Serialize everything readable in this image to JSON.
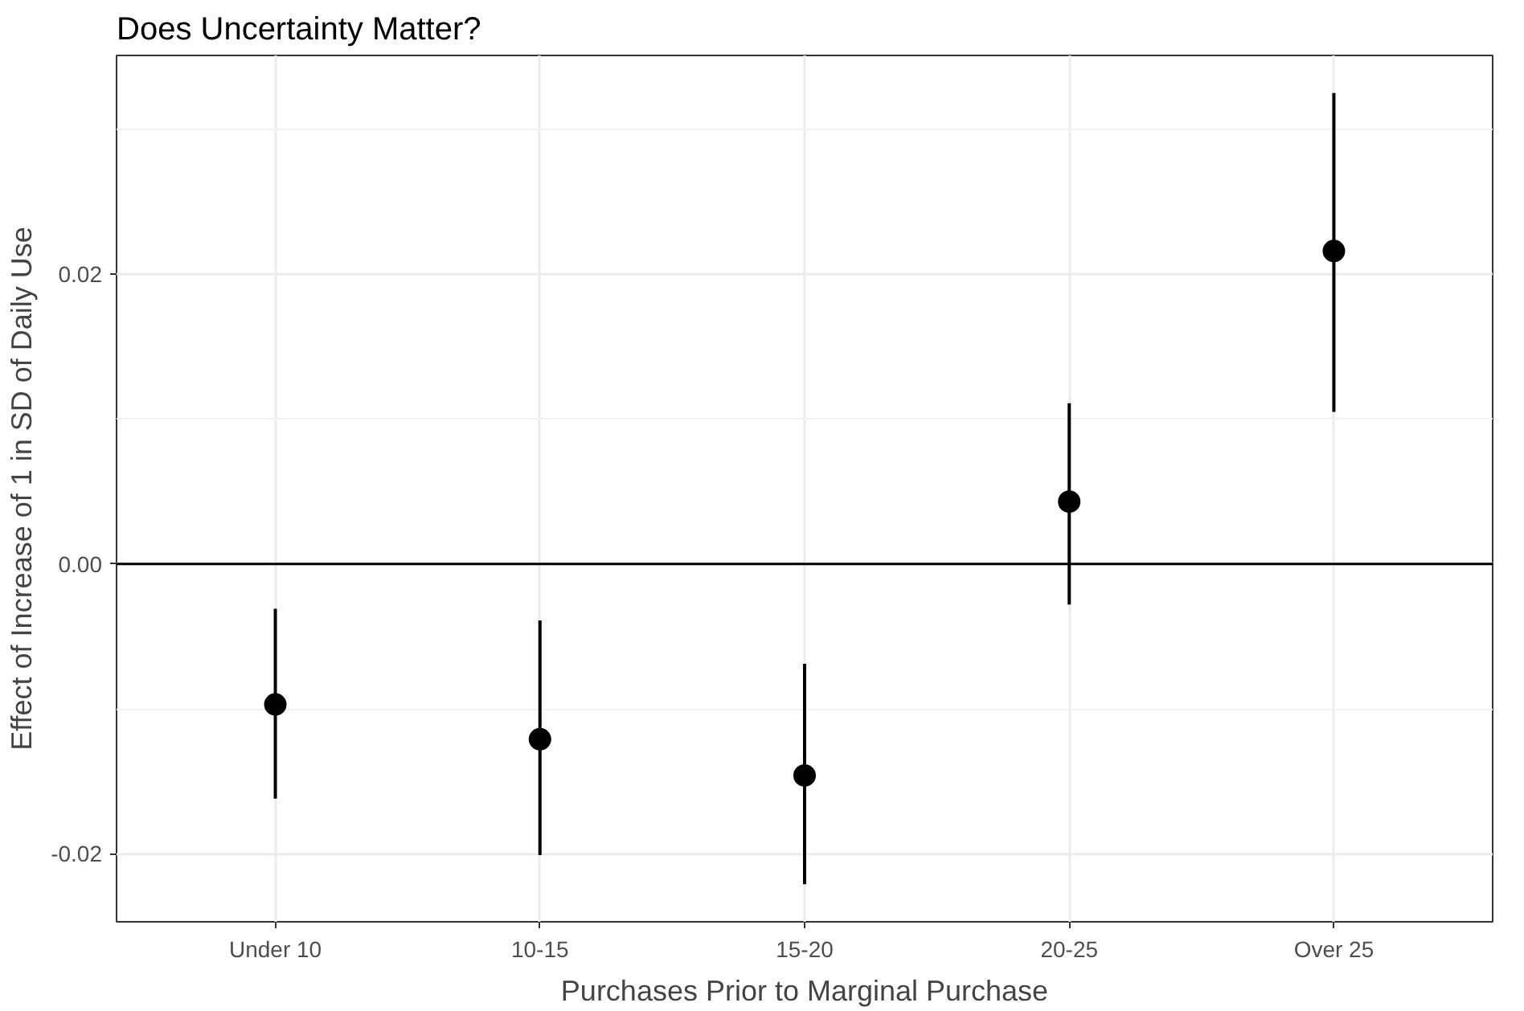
{
  "chart_data": {
    "type": "scatter",
    "title": "Does Uncertainty Matter?",
    "xlabel": "Purchases Prior to Marginal Purchase",
    "ylabel": "Effect of Increase of 1 in SD of Daily Use",
    "categories": [
      "Under 10",
      "10-15",
      "15-20",
      "20-25",
      "Over 25"
    ],
    "values": [
      -0.0097,
      -0.0121,
      -0.0146,
      0.0043,
      0.0216
    ],
    "errors": [
      [
        -0.0162,
        -0.0031
      ],
      [
        -0.0201,
        -0.0039
      ],
      [
        -0.0221,
        -0.0069
      ],
      [
        -0.0028,
        0.0111
      ],
      [
        0.0105,
        0.0325
      ]
    ],
    "color": "#000000",
    "marker": "circle",
    "ylim": [
      -0.0247,
      0.0351
    ],
    "yticks": [
      {
        "value": -0.02,
        "label": "-0.02"
      },
      {
        "value": 0,
        "label": "0.00"
      },
      {
        "value": 0.02,
        "label": "0.02"
      }
    ],
    "ref_lines": [
      {
        "axis": "y",
        "value": 0,
        "color": "#000000"
      }
    ],
    "grid": true
  }
}
